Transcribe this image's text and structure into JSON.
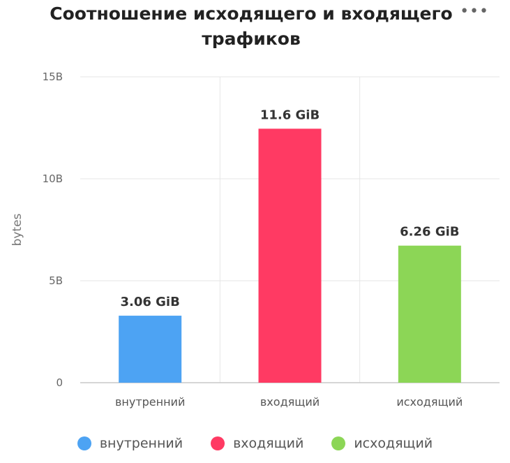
{
  "chart": {
    "title": "Соотношение исходящего и входящего трафиков",
    "menu_icon": "more-horizontal-icon"
  },
  "chart_data": {
    "type": "bar",
    "title": "Соотношение исходящего и входящего трафиков",
    "xlabel": "",
    "ylabel": "bytes",
    "categories": [
      "внутренний",
      "входящий",
      "исходящий"
    ],
    "values": [
      3.06,
      11.6,
      6.26
    ],
    "value_unit": "GiB",
    "data_labels": [
      "3.06 GiB",
      "11.6 GiB",
      "6.26 GiB"
    ],
    "colors": [
      "#4da3f3",
      "#ff3a63",
      "#8cd656"
    ],
    "yticks": [
      "0",
      "5B",
      "10B",
      "15B"
    ],
    "ytick_values": [
      0,
      5,
      10,
      15
    ],
    "ylim": [
      0,
      15
    ],
    "grid": true,
    "legend": "bottom-center"
  },
  "legend": {
    "items": [
      {
        "label": "внутренний",
        "color": "#4da3f3"
      },
      {
        "label": "входящий",
        "color": "#ff3a63"
      },
      {
        "label": "исходящий",
        "color": "#8cd656"
      }
    ]
  }
}
